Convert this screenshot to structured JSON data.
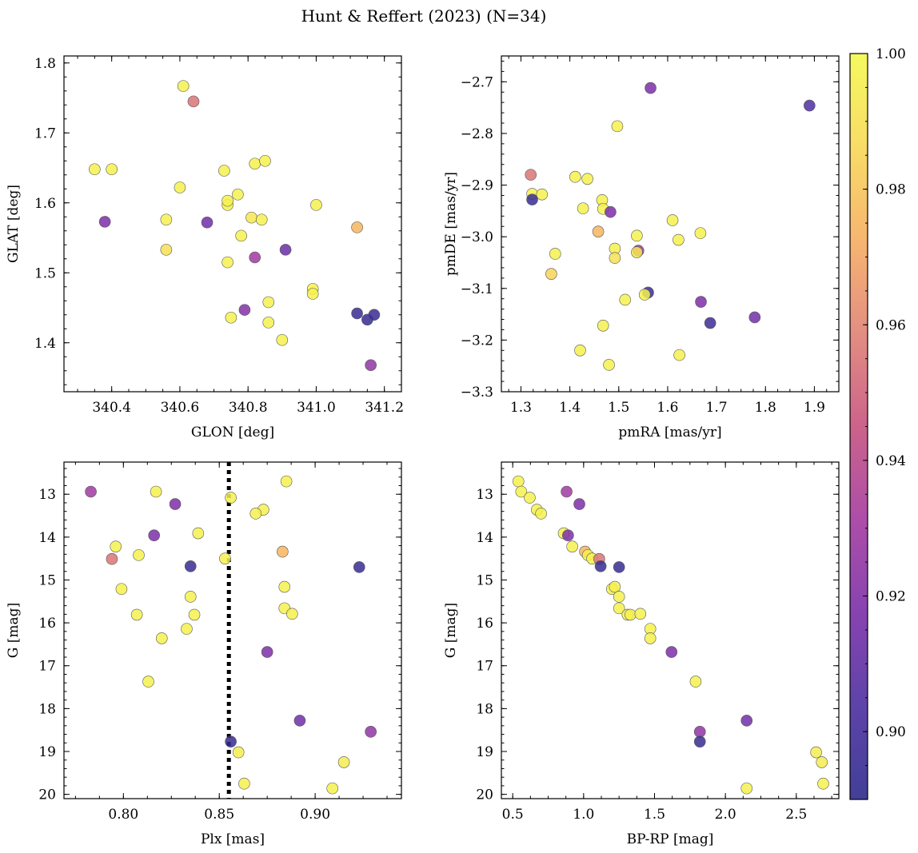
{
  "figure": {
    "title": "Hunt & Reffert (2023) (N=34)"
  },
  "colorbar": {
    "range": [
      0.89,
      1.0
    ],
    "ticks": [
      0.9,
      0.92,
      0.94,
      0.96,
      0.98,
      1.0
    ],
    "tick_labels": [
      "0.90",
      "0.92",
      "0.94",
      "0.96",
      "0.98",
      "1.00"
    ],
    "colormap": "plasma",
    "colors": [
      "#2d2a8c",
      "#4b2ea0",
      "#7a2ea8",
      "#a43a9f",
      "#c6517e",
      "#e08174",
      "#f6ad61",
      "#f7d855",
      "#f4f84d"
    ]
  },
  "chart_data": [
    {
      "type": "scatter",
      "xlabel": "GLON [deg]",
      "ylabel": "GLAT [deg]",
      "xlim": [
        340.26,
        341.25
      ],
      "ylim": [
        1.33,
        1.81
      ],
      "xticks": [
        340.4,
        340.6,
        340.8,
        341.0,
        341.2
      ],
      "xtick_labels": [
        "340.4",
        "340.6",
        "340.8",
        "341.0",
        "341.2"
      ],
      "yticks": [
        1.4,
        1.5,
        1.6,
        1.7,
        1.8
      ],
      "ytick_labels": [
        "1.4",
        "1.5",
        "1.6",
        "1.7",
        "1.8"
      ],
      "grid": false,
      "points": [
        {
          "x": 340.35,
          "y": 1.648,
          "c": 0.997
        },
        {
          "x": 340.4,
          "y": 1.648,
          "c": 0.997
        },
        {
          "x": 340.38,
          "y": 1.573,
          "c": 0.918
        },
        {
          "x": 340.61,
          "y": 1.767,
          "c": 0.997
        },
        {
          "x": 340.64,
          "y": 1.745,
          "c": 0.955
        },
        {
          "x": 340.6,
          "y": 1.622,
          "c": 0.997
        },
        {
          "x": 340.56,
          "y": 1.576,
          "c": 0.997
        },
        {
          "x": 340.56,
          "y": 1.533,
          "c": 0.99
        },
        {
          "x": 340.68,
          "y": 1.572,
          "c": 0.915
        },
        {
          "x": 340.73,
          "y": 1.646,
          "c": 0.997
        },
        {
          "x": 340.74,
          "y": 1.597,
          "c": 0.997
        },
        {
          "x": 340.74,
          "y": 1.603,
          "c": 0.997
        },
        {
          "x": 340.77,
          "y": 1.612,
          "c": 0.997
        },
        {
          "x": 340.74,
          "y": 1.515,
          "c": 0.997
        },
        {
          "x": 340.75,
          "y": 1.436,
          "c": 0.997
        },
        {
          "x": 340.78,
          "y": 1.553,
          "c": 0.997
        },
        {
          "x": 340.79,
          "y": 1.447,
          "c": 0.92
        },
        {
          "x": 340.81,
          "y": 1.579,
          "c": 0.993
        },
        {
          "x": 340.82,
          "y": 1.522,
          "c": 0.93
        },
        {
          "x": 340.82,
          "y": 1.656,
          "c": 0.997
        },
        {
          "x": 340.85,
          "y": 1.66,
          "c": 0.997
        },
        {
          "x": 340.84,
          "y": 1.576,
          "c": 0.997
        },
        {
          "x": 340.86,
          "y": 1.458,
          "c": 0.997
        },
        {
          "x": 340.86,
          "y": 1.429,
          "c": 0.997
        },
        {
          "x": 340.9,
          "y": 1.404,
          "c": 0.997
        },
        {
          "x": 340.91,
          "y": 1.533,
          "c": 0.912
        },
        {
          "x": 341.0,
          "y": 1.597,
          "c": 0.997
        },
        {
          "x": 340.99,
          "y": 1.477,
          "c": 0.997
        },
        {
          "x": 340.99,
          "y": 1.47,
          "c": 0.997
        },
        {
          "x": 341.12,
          "y": 1.565,
          "c": 0.975
        },
        {
          "x": 341.12,
          "y": 1.442,
          "c": 0.895
        },
        {
          "x": 341.15,
          "y": 1.433,
          "c": 0.893
        },
        {
          "x": 341.17,
          "y": 1.44,
          "c": 0.895
        },
        {
          "x": 341.16,
          "y": 1.368,
          "c": 0.925
        }
      ]
    },
    {
      "type": "scatter",
      "xlabel": "pmRA [mas/yr]",
      "ylabel": "pmDE [mas/yr]",
      "xlim": [
        1.26,
        1.95
      ],
      "ylim": [
        -3.3,
        -2.65
      ],
      "xticks": [
        1.3,
        1.4,
        1.5,
        1.6,
        1.7,
        1.8,
        1.9
      ],
      "xtick_labels": [
        "1.3",
        "1.4",
        "1.5",
        "1.6",
        "1.7",
        "1.8",
        "1.9"
      ],
      "yticks": [
        -3.3,
        -3.2,
        -3.1,
        -3.0,
        -2.9,
        -2.8,
        -2.7
      ],
      "ytick_labels": [
        "−3.3",
        "−3.2",
        "−3.1",
        "−3.0",
        "−2.9",
        "−2.8",
        "−2.7"
      ],
      "grid": false,
      "points": [
        {
          "x": 1.565,
          "y": -2.712,
          "c": 0.918
        },
        {
          "x": 1.89,
          "y": -2.746,
          "c": 0.905
        },
        {
          "x": 1.497,
          "y": -2.786,
          "c": 0.997
        },
        {
          "x": 1.32,
          "y": -2.88,
          "c": 0.955
        },
        {
          "x": 1.323,
          "y": -2.917,
          "c": 0.997
        },
        {
          "x": 1.343,
          "y": -2.918,
          "c": 0.997
        },
        {
          "x": 1.323,
          "y": -2.928,
          "c": 0.895
        },
        {
          "x": 1.411,
          "y": -2.884,
          "c": 0.997
        },
        {
          "x": 1.436,
          "y": -2.888,
          "c": 0.997
        },
        {
          "x": 1.466,
          "y": -2.929,
          "c": 0.997
        },
        {
          "x": 1.427,
          "y": -2.945,
          "c": 0.997
        },
        {
          "x": 1.468,
          "y": -2.946,
          "c": 0.997
        },
        {
          "x": 1.483,
          "y": -2.952,
          "c": 0.918
        },
        {
          "x": 1.458,
          "y": -2.99,
          "c": 0.975
        },
        {
          "x": 1.61,
          "y": -2.968,
          "c": 0.997
        },
        {
          "x": 1.622,
          "y": -3.006,
          "c": 0.997
        },
        {
          "x": 1.667,
          "y": -2.993,
          "c": 0.997
        },
        {
          "x": 1.537,
          "y": -2.998,
          "c": 0.997
        },
        {
          "x": 1.37,
          "y": -3.033,
          "c": 0.997
        },
        {
          "x": 1.492,
          "y": -3.023,
          "c": 0.997
        },
        {
          "x": 1.492,
          "y": -3.041,
          "c": 0.99
        },
        {
          "x": 1.54,
          "y": -3.027,
          "c": 0.93
        },
        {
          "x": 1.537,
          "y": -3.03,
          "c": 0.993
        },
        {
          "x": 1.362,
          "y": -3.072,
          "c": 0.985
        },
        {
          "x": 1.56,
          "y": -3.108,
          "c": 0.895
        },
        {
          "x": 1.553,
          "y": -3.112,
          "c": 0.997
        },
        {
          "x": 1.513,
          "y": -3.122,
          "c": 0.997
        },
        {
          "x": 1.668,
          "y": -3.126,
          "c": 0.918
        },
        {
          "x": 1.778,
          "y": -3.156,
          "c": 0.915
        },
        {
          "x": 1.687,
          "y": -3.167,
          "c": 0.898
        },
        {
          "x": 1.468,
          "y": -3.172,
          "c": 0.997
        },
        {
          "x": 1.421,
          "y": -3.22,
          "c": 0.997
        },
        {
          "x": 1.624,
          "y": -3.229,
          "c": 0.997
        },
        {
          "x": 1.48,
          "y": -3.248,
          "c": 0.997
        }
      ]
    },
    {
      "type": "scatter",
      "xlabel": "Plx [mas]",
      "ylabel": "G [mag]",
      "xlim": [
        0.769,
        0.945
      ],
      "ylim": [
        20.1,
        12.25
      ],
      "yinverted": true,
      "xticks": [
        0.8,
        0.85,
        0.9
      ],
      "xtick_labels": [
        "0.80",
        "0.85",
        "0.90"
      ],
      "yticks": [
        13,
        14,
        15,
        16,
        17,
        18,
        19,
        20
      ],
      "ytick_labels": [
        "13",
        "14",
        "15",
        "16",
        "17",
        "18",
        "19",
        "20"
      ],
      "grid": false,
      "vline": {
        "x": 0.855,
        "style": "dotted"
      },
      "points": [
        {
          "x": 0.783,
          "y": 12.94,
          "c": 0.93
        },
        {
          "x": 0.817,
          "y": 12.94,
          "c": 0.997
        },
        {
          "x": 0.827,
          "y": 13.23,
          "c": 0.918
        },
        {
          "x": 0.856,
          "y": 13.08,
          "c": 0.997
        },
        {
          "x": 0.885,
          "y": 12.7,
          "c": 0.997
        },
        {
          "x": 0.873,
          "y": 13.36,
          "c": 0.997
        },
        {
          "x": 0.869,
          "y": 13.45,
          "c": 0.997
        },
        {
          "x": 0.839,
          "y": 13.91,
          "c": 0.997
        },
        {
          "x": 0.816,
          "y": 13.96,
          "c": 0.918
        },
        {
          "x": 0.796,
          "y": 14.22,
          "c": 0.997
        },
        {
          "x": 0.808,
          "y": 14.42,
          "c": 0.997
        },
        {
          "x": 0.794,
          "y": 14.51,
          "c": 0.955
        },
        {
          "x": 0.853,
          "y": 14.5,
          "c": 0.997
        },
        {
          "x": 0.883,
          "y": 14.34,
          "c": 0.975
        },
        {
          "x": 0.835,
          "y": 14.68,
          "c": 0.895
        },
        {
          "x": 0.923,
          "y": 14.7,
          "c": 0.895
        },
        {
          "x": 0.799,
          "y": 15.21,
          "c": 0.997
        },
        {
          "x": 0.835,
          "y": 15.39,
          "c": 0.997
        },
        {
          "x": 0.884,
          "y": 15.16,
          "c": 0.997
        },
        {
          "x": 0.884,
          "y": 15.66,
          "c": 0.997
        },
        {
          "x": 0.807,
          "y": 15.81,
          "c": 0.997
        },
        {
          "x": 0.837,
          "y": 15.81,
          "c": 0.997
        },
        {
          "x": 0.888,
          "y": 15.79,
          "c": 0.997
        },
        {
          "x": 0.833,
          "y": 16.14,
          "c": 0.997
        },
        {
          "x": 0.82,
          "y": 16.36,
          "c": 0.997
        },
        {
          "x": 0.875,
          "y": 16.68,
          "c": 0.918
        },
        {
          "x": 0.813,
          "y": 17.37,
          "c": 0.997
        },
        {
          "x": 0.892,
          "y": 18.28,
          "c": 0.915
        },
        {
          "x": 0.929,
          "y": 18.54,
          "c": 0.925
        },
        {
          "x": 0.856,
          "y": 18.77,
          "c": 0.895
        },
        {
          "x": 0.86,
          "y": 19.02,
          "c": 0.995
        },
        {
          "x": 0.915,
          "y": 19.25,
          "c": 0.995
        },
        {
          "x": 0.863,
          "y": 19.75,
          "c": 0.997
        },
        {
          "x": 0.909,
          "y": 19.86,
          "c": 0.997
        }
      ]
    },
    {
      "type": "scatter",
      "xlabel": "BP-RP [mag]",
      "ylabel": "G [mag]",
      "xlim": [
        0.42,
        2.8
      ],
      "ylim": [
        20.1,
        12.25
      ],
      "yinverted": true,
      "xticks": [
        0.5,
        1.0,
        1.5,
        2.0,
        2.5
      ],
      "xtick_labels": [
        "0.5",
        "1.0",
        "1.5",
        "2.0",
        "2.5"
      ],
      "yticks": [
        13,
        14,
        15,
        16,
        17,
        18,
        19,
        20
      ],
      "ytick_labels": [
        "13",
        "14",
        "15",
        "16",
        "17",
        "18",
        "19",
        "20"
      ],
      "grid": false,
      "points": [
        {
          "x": 0.54,
          "y": 12.7,
          "c": 0.997
        },
        {
          "x": 0.56,
          "y": 12.94,
          "c": 0.997
        },
        {
          "x": 0.62,
          "y": 13.08,
          "c": 0.997
        },
        {
          "x": 0.67,
          "y": 13.36,
          "c": 0.997
        },
        {
          "x": 0.7,
          "y": 13.45,
          "c": 0.997
        },
        {
          "x": 0.88,
          "y": 12.94,
          "c": 0.93
        },
        {
          "x": 0.97,
          "y": 13.23,
          "c": 0.918
        },
        {
          "x": 0.86,
          "y": 13.91,
          "c": 0.997
        },
        {
          "x": 0.89,
          "y": 13.96,
          "c": 0.918
        },
        {
          "x": 0.92,
          "y": 14.22,
          "c": 0.997
        },
        {
          "x": 1.01,
          "y": 14.34,
          "c": 0.975
        },
        {
          "x": 1.03,
          "y": 14.42,
          "c": 0.997
        },
        {
          "x": 1.06,
          "y": 14.5,
          "c": 0.997
        },
        {
          "x": 1.11,
          "y": 14.51,
          "c": 0.955
        },
        {
          "x": 1.12,
          "y": 14.68,
          "c": 0.895
        },
        {
          "x": 1.25,
          "y": 14.7,
          "c": 0.895
        },
        {
          "x": 1.2,
          "y": 15.21,
          "c": 0.997
        },
        {
          "x": 1.22,
          "y": 15.16,
          "c": 0.997
        },
        {
          "x": 1.25,
          "y": 15.39,
          "c": 0.997
        },
        {
          "x": 1.25,
          "y": 15.66,
          "c": 0.997
        },
        {
          "x": 1.31,
          "y": 15.81,
          "c": 0.997
        },
        {
          "x": 1.33,
          "y": 15.81,
          "c": 0.997
        },
        {
          "x": 1.4,
          "y": 15.79,
          "c": 0.997
        },
        {
          "x": 1.47,
          "y": 16.14,
          "c": 0.997
        },
        {
          "x": 1.47,
          "y": 16.36,
          "c": 0.997
        },
        {
          "x": 1.62,
          "y": 16.68,
          "c": 0.918
        },
        {
          "x": 1.79,
          "y": 17.37,
          "c": 0.997
        },
        {
          "x": 1.82,
          "y": 18.54,
          "c": 0.925
        },
        {
          "x": 1.82,
          "y": 18.77,
          "c": 0.895
        },
        {
          "x": 2.15,
          "y": 18.28,
          "c": 0.915
        },
        {
          "x": 2.15,
          "y": 19.86,
          "c": 0.997
        },
        {
          "x": 2.64,
          "y": 19.02,
          "c": 0.995
        },
        {
          "x": 2.68,
          "y": 19.25,
          "c": 0.995
        },
        {
          "x": 2.69,
          "y": 19.75,
          "c": 0.997
        }
      ]
    }
  ]
}
